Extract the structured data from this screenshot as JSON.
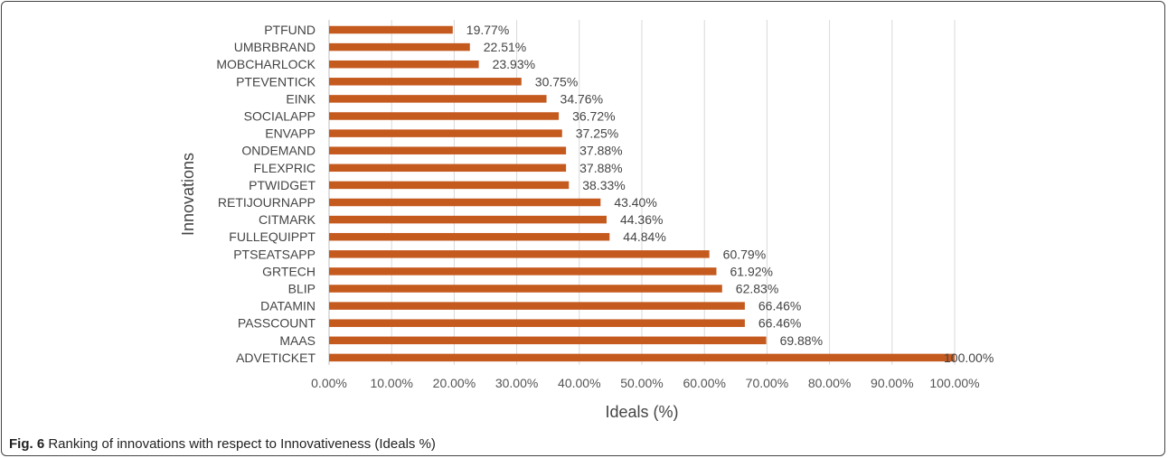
{
  "chart_data": {
    "type": "bar",
    "orientation": "horizontal",
    "categories": [
      "PTFUND",
      "UMBRBRAND",
      "MOBCHARLOCK",
      "PTEVENTICK",
      "EINK",
      "SOCIALAPP",
      "ENVAPP",
      "ONDEMAND",
      "FLEXPRIC",
      "PTWIDGET",
      "RETIJOURNAPP",
      "CITMARK",
      "FULLEQUIPPT",
      "PTSEATSAPP",
      "GRTECH",
      "BLIP",
      "DATAMIN",
      "PASSCOUNT",
      "MAAS",
      "ADVETICKET"
    ],
    "values": [
      19.77,
      22.51,
      23.93,
      30.75,
      34.76,
      36.72,
      37.25,
      37.88,
      37.88,
      38.33,
      43.4,
      44.36,
      44.84,
      60.79,
      61.92,
      62.83,
      66.46,
      66.46,
      69.88,
      100.0
    ],
    "value_labels": [
      "19.77%",
      "22.51%",
      "23.93%",
      "30.75%",
      "34.76%",
      "36.72%",
      "37.25%",
      "37.88%",
      "37.88%",
      "38.33%",
      "43.40%",
      "44.36%",
      "44.84%",
      "60.79%",
      "61.92%",
      "62.83%",
      "66.46%",
      "66.46%",
      "69.88%",
      "100.00%"
    ],
    "xticks": [
      "0.00%",
      "10.00%",
      "20.00%",
      "30.00%",
      "40.00%",
      "50.00%",
      "60.00%",
      "70.00%",
      "80.00%",
      "90.00%",
      "100.00%"
    ],
    "xlim": [
      0,
      100
    ],
    "xlabel": "Ideals (%)",
    "ylabel": "Innovations",
    "grid": "vertical",
    "bar_color": "#c55a1f"
  },
  "caption": {
    "label": "Fig. 6",
    "text": " Ranking of innovations with respect to Innovativeness (Ideals %)"
  }
}
